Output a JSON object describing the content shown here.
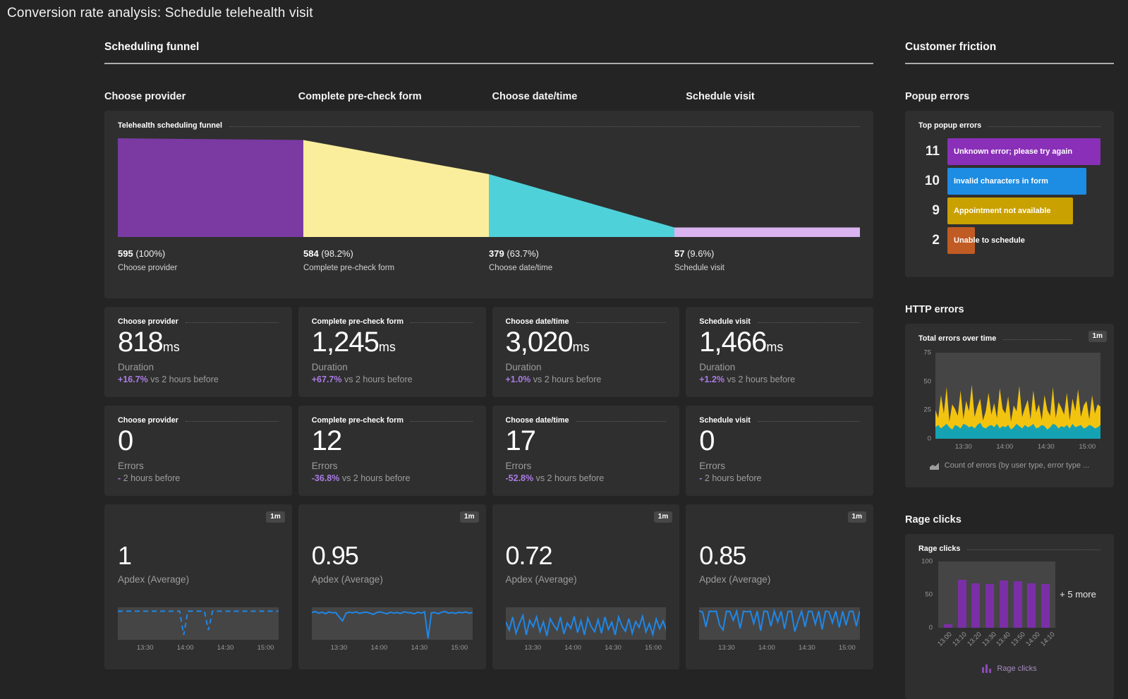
{
  "page": {
    "title": "Conversion rate analysis: Schedule telehealth visit"
  },
  "colors": {
    "page_bg": "#242424",
    "card_bg": "#2f2f2f",
    "plot_bg": "#454545",
    "delta_purple": "#ab7ce4",
    "spark_blue": "#1f87e8",
    "http_yellow": "#f3c40f",
    "http_teal": "#15a3b4",
    "rage_purple": "#7b2fa6"
  },
  "funnel_section": {
    "title": "Scheduling funnel",
    "columns": [
      "Choose provider",
      "Complete pre-check form",
      "Choose date/time",
      "Schedule visit"
    ],
    "funnel": {
      "title": "Telehealth scheduling funnel",
      "type": "funnel",
      "steps": [
        {
          "label": "Choose provider",
          "count": "595",
          "pct": "(100%)",
          "value": 100,
          "color": "#7a3aa2"
        },
        {
          "label": "Complete pre-check form",
          "count": "584",
          "pct": "(98.2%)",
          "value": 98.2,
          "color": "#faee9c"
        },
        {
          "label": "Choose date/time",
          "count": "379",
          "pct": "(63.7%)",
          "value": 63.7,
          "color": "#4fd1d9"
        },
        {
          "label": "Schedule visit",
          "count": "57",
          "pct": "(9.6%)",
          "value": 9.6,
          "color": "#d9b4f0"
        }
      ]
    },
    "duration_cards": [
      {
        "title": "Choose provider",
        "value": "818",
        "unit": "ms",
        "metric": "Duration",
        "delta": "+16.7%",
        "delta_rest": " vs 2 hours before"
      },
      {
        "title": "Complete pre-check form",
        "value": "1,245",
        "unit": "ms",
        "metric": "Duration",
        "delta": "+67.7%",
        "delta_rest": " vs 2 hours before"
      },
      {
        "title": "Choose date/time",
        "value": "3,020",
        "unit": "ms",
        "metric": "Duration",
        "delta": "+1.0%",
        "delta_rest": " vs 2 hours before"
      },
      {
        "title": "Schedule visit",
        "value": "1,466",
        "unit": "ms",
        "metric": "Duration",
        "delta": "+1.2%",
        "delta_rest": " vs 2 hours before"
      }
    ],
    "error_cards": [
      {
        "title": "Choose provider",
        "value": "0",
        "metric": "Errors",
        "delta": "-",
        "delta_rest": " 2 hours before"
      },
      {
        "title": "Complete pre-check form",
        "value": "12",
        "metric": "Errors",
        "delta": "-36.8%",
        "delta_rest": " vs 2 hours before"
      },
      {
        "title": "Choose date/time",
        "value": "17",
        "metric": "Errors",
        "delta": "-52.8%",
        "delta_rest": " vs 2 hours before"
      },
      {
        "title": "Schedule visit",
        "value": "0",
        "metric": "Errors",
        "delta": "-",
        "delta_rest": " 2 hours before"
      }
    ],
    "apdex_cards": [
      {
        "badge": "1m",
        "value": "1",
        "metric": "Apdex (Average)",
        "dashed": true,
        "x_ticks": [
          "13:30",
          "14:00",
          "14:30",
          "15:00"
        ],
        "spark": [
          12,
          12,
          12,
          12,
          12,
          12,
          12,
          12,
          12,
          12,
          12,
          12,
          12,
          12,
          12,
          12,
          85,
          12,
          12,
          12,
          12,
          12,
          70,
          12,
          12,
          12,
          12,
          12,
          12,
          12,
          12,
          12,
          12,
          12,
          12,
          12,
          12,
          12,
          12,
          12
        ]
      },
      {
        "badge": "1m",
        "value": "0.95",
        "metric": "Apdex (Average)",
        "dashed": false,
        "x_ticks": [
          "13:30",
          "14:00",
          "14:30",
          "15:00"
        ],
        "spark": [
          16,
          13,
          18,
          15,
          20,
          14,
          17,
          16,
          30,
          42,
          18,
          15,
          17,
          14,
          19,
          16,
          15,
          18,
          22,
          16,
          14,
          17,
          20,
          15,
          18,
          16,
          19,
          14,
          16,
          17,
          20,
          15,
          18,
          14,
          96,
          17,
          16,
          20,
          15,
          13,
          18,
          16,
          19,
          15,
          17,
          14,
          18,
          16
        ]
      },
      {
        "badge": "1m",
        "value": "0.72",
        "metric": "Apdex (Average)",
        "dashed": false,
        "x_ticks": [
          "13:30",
          "14:00",
          "14:30",
          "15:00"
        ],
        "spark": [
          45,
          70,
          30,
          80,
          50,
          25,
          85,
          40,
          60,
          30,
          75,
          45,
          88,
          35,
          55,
          70,
          30,
          82,
          48,
          65,
          28,
          78,
          42,
          85,
          33,
          60,
          75,
          38,
          80,
          30,
          68,
          46,
          85,
          30,
          58,
          74,
          35,
          80,
          44,
          62,
          28,
          76,
          50,
          84,
          36,
          66,
          42,
          72
        ]
      },
      {
        "badge": "1m",
        "value": "0.85",
        "metric": "Apdex (Average)",
        "dashed": false,
        "x_ticks": [
          "13:30",
          "14:00",
          "14:30",
          "15:00"
        ],
        "spark": [
          12,
          14,
          60,
          12,
          13,
          12,
          55,
          70,
          12,
          13,
          40,
          12,
          65,
          12,
          14,
          12,
          50,
          12,
          72,
          12,
          13,
          58,
          12,
          45,
          12,
          66,
          13,
          12,
          75,
          40,
          12,
          60,
          12,
          13,
          52,
          12,
          68,
          12,
          14,
          48,
          12,
          62,
          12,
          55,
          13,
          12,
          58,
          12
        ]
      }
    ]
  },
  "friction_section": {
    "title": "Customer friction",
    "popup_errors": {
      "heading": "Popup errors",
      "card_title": "Top popup errors",
      "max_count": 11,
      "items": [
        {
          "count": "11",
          "label": "Unknown error; please try again",
          "color": "#8a2fb8"
        },
        {
          "count": "10",
          "label": "Invalid characters in form",
          "color": "#1d8ce3"
        },
        {
          "count": "9",
          "label": "Appointment not available",
          "color": "#c9a100"
        },
        {
          "count": "2",
          "label": "Unable to schedule",
          "color": "#c05b24"
        }
      ]
    },
    "http_errors": {
      "heading": "HTTP errors",
      "card_title": "Total errors over time",
      "badge": "1m",
      "legend": "Count of errors (by user type, error type ...",
      "chart": {
        "type": "area",
        "ylim": [
          0,
          75
        ],
        "y_ticks": [
          "75",
          "50",
          "25",
          "0"
        ],
        "x_ticks": [
          "13:30",
          "14:00",
          "14:30",
          "15:00"
        ],
        "series": [
          {
            "name": "total",
            "color": "#f3c40f",
            "values": [
              25,
              18,
              38,
              22,
              45,
              15,
              30,
              26,
              20,
              42,
              17,
              33,
              24,
              47,
              19,
              28,
              35,
              16,
              24,
              40,
              21,
              31,
              18,
              44,
              26,
              22,
              37,
              15,
              29,
              24,
              46,
              19,
              27,
              34,
              17,
              42,
              23,
              30,
              16,
              38,
              25,
              20,
              45,
              18,
              32,
              27,
              21,
              40,
              16,
              35,
              24,
              43,
              19,
              29,
              33,
              17,
              38,
              22,
              30,
              28
            ]
          },
          {
            "name": "bottom",
            "color": "#15a3b4",
            "values": [
              10,
              12,
              9,
              11,
              13,
              10,
              8,
              12,
              11,
              9,
              13,
              12,
              10,
              11,
              9,
              12,
              14,
              10,
              9,
              11,
              12,
              10,
              13,
              9,
              11,
              10,
              12,
              8,
              10,
              13,
              11,
              9,
              12,
              10,
              11,
              13,
              9,
              10,
              12,
              11,
              8,
              10,
              13,
              12,
              9,
              11,
              10,
              12,
              9,
              13,
              10,
              11,
              12,
              9,
              10,
              12,
              11,
              9,
              10,
              12
            ]
          }
        ]
      }
    },
    "rage_clicks": {
      "heading": "Rage clicks",
      "card_title": "Rage clicks",
      "more_label": "+ 5 more",
      "legend": "Rage clicks",
      "chart": {
        "type": "bar",
        "ylim": [
          0,
          100
        ],
        "y_ticks": [
          "100",
          "50",
          "0"
        ],
        "categories": [
          "13:00",
          "13:10",
          "13:20",
          "13:30",
          "13:40",
          "13:50",
          "14:00",
          "14:10"
        ],
        "values": [
          5,
          72,
          67,
          66,
          71,
          70,
          67,
          66
        ],
        "bar_color": "#7b2fa6"
      }
    }
  }
}
